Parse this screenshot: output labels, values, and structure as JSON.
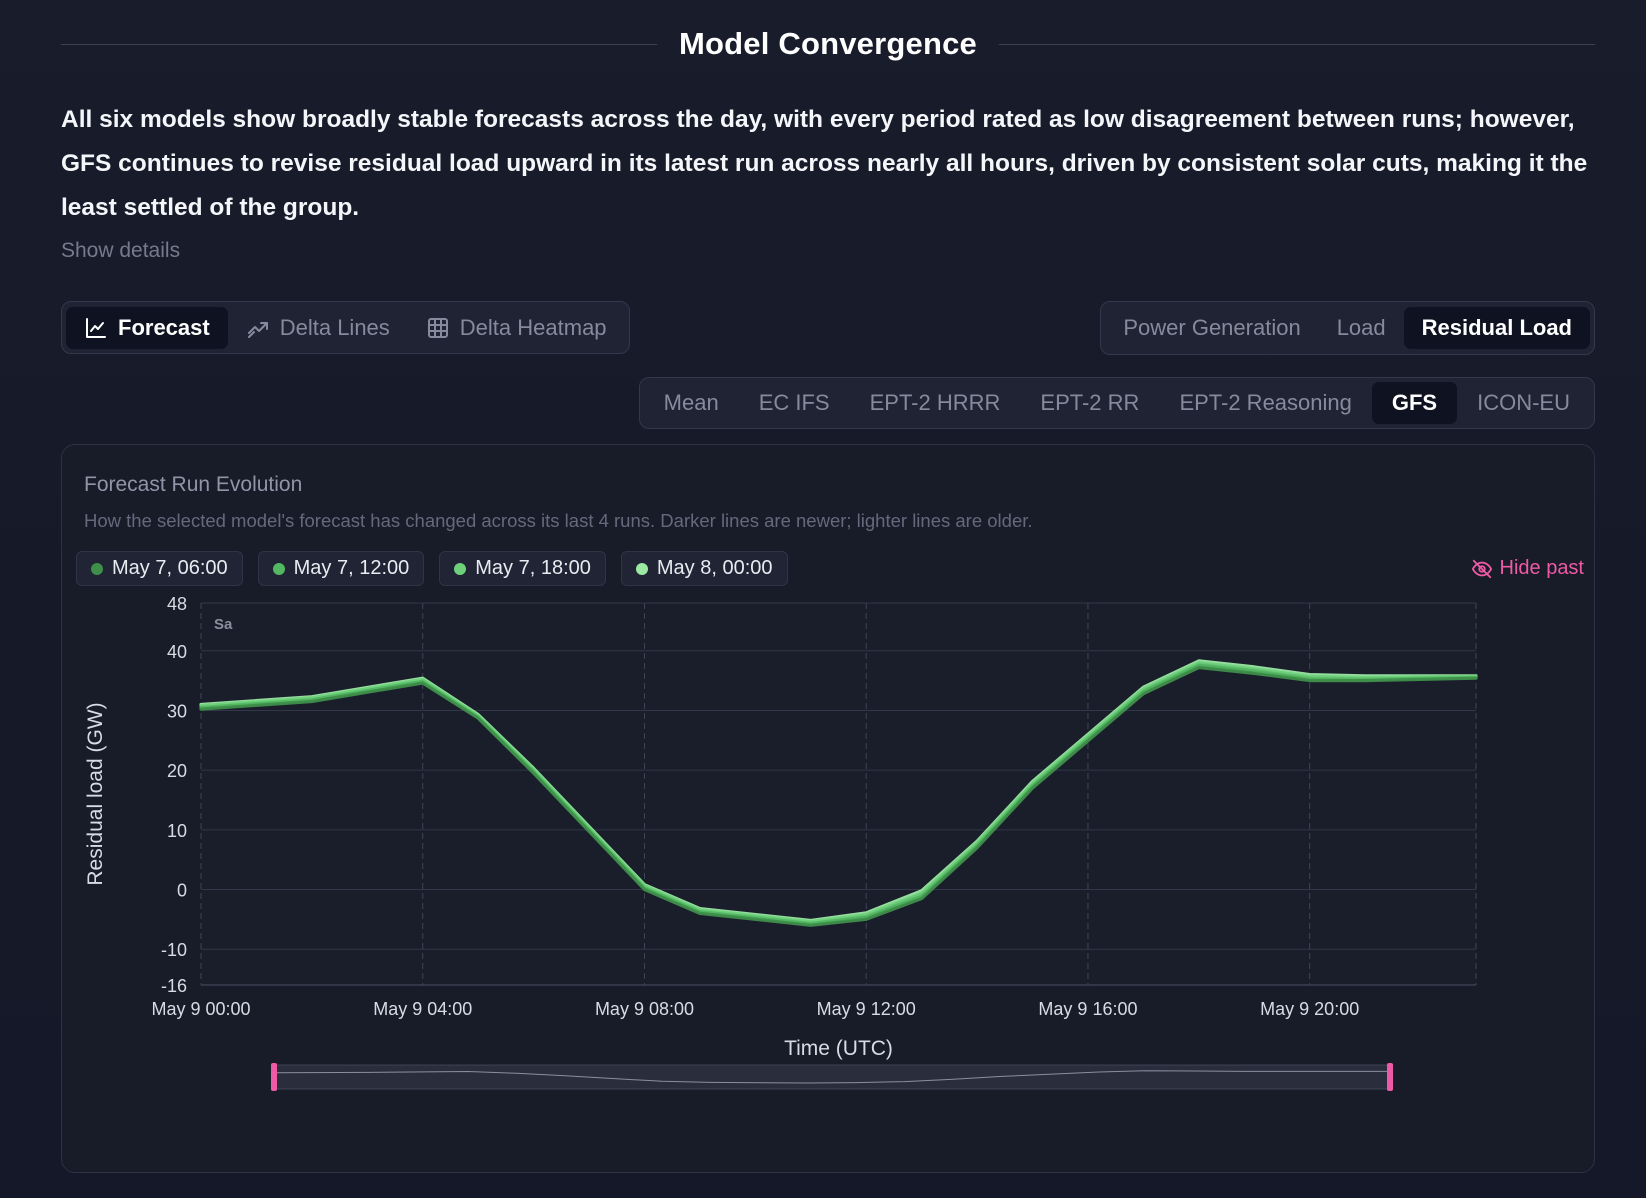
{
  "header": {
    "title": "Model Convergence",
    "summary": "All six models show broadly stable forecasts across the day, with every period rated as low disagreement between runs; however, GFS continues to revise residual load upward in its latest run across nearly all hours, driven by consistent solar cuts, making it the least settled of the group.",
    "show_details": "Show details"
  },
  "view_tabs": [
    {
      "label": "Forecast",
      "icon": "line-chart-icon",
      "active": true
    },
    {
      "label": "Delta Lines",
      "icon": "trend-icon",
      "active": false
    },
    {
      "label": "Delta Heatmap",
      "icon": "grid-icon",
      "active": false
    }
  ],
  "metric_tabs": [
    {
      "label": "Power Generation",
      "active": false
    },
    {
      "label": "Load",
      "active": false
    },
    {
      "label": "Residual Load",
      "active": true
    }
  ],
  "model_tabs": [
    {
      "label": "Mean",
      "active": false
    },
    {
      "label": "EC IFS",
      "active": false
    },
    {
      "label": "EPT-2 HRRR",
      "active": false
    },
    {
      "label": "EPT-2 RR",
      "active": false
    },
    {
      "label": "EPT-2 Reasoning",
      "active": false
    },
    {
      "label": "GFS",
      "active": true
    },
    {
      "label": "ICON-EU",
      "active": false
    }
  ],
  "card": {
    "title": "Forecast Run Evolution",
    "subtitle": "How the selected model's forecast has changed across its last 4 runs. Darker lines are newer; lighter lines are older.",
    "hide_past_label": "Hide past",
    "hide_past_icon": "eye-off-icon"
  },
  "colors": {
    "accent_pink": "#ee5aa5",
    "run_newest": "#3e8f4a",
    "run_1": "#53b862",
    "run_2": "#6fd07c",
    "run_oldest": "#9be8a3"
  },
  "chart_data": {
    "type": "line",
    "title": "",
    "xlabel": "Time (UTC)",
    "ylabel": "Residual load (GW)",
    "day_marker": "Sa",
    "xlim": [
      0,
      23
    ],
    "ylim": [
      -16,
      48
    ],
    "yticks": [
      48,
      40,
      30,
      20,
      10,
      0,
      -10,
      -16
    ],
    "xticks": [
      {
        "x": 0,
        "label": "May 9 00:00"
      },
      {
        "x": 4,
        "label": "May 9 04:00"
      },
      {
        "x": 8,
        "label": "May 9 08:00"
      },
      {
        "x": 12,
        "label": "May 9 12:00"
      },
      {
        "x": 16,
        "label": "May 9 16:00"
      },
      {
        "x": 20,
        "label": "May 9 20:00"
      }
    ],
    "grid": true,
    "x": [
      0,
      2,
      4,
      5,
      6,
      8,
      9,
      11,
      12,
      13,
      14,
      15,
      17,
      18,
      19,
      20,
      21,
      22,
      23
    ],
    "series": [
      {
        "name": "May 7, 06:00",
        "color": "#3e8f4a",
        "values": [
          30.2,
          31.5,
          34.6,
          28.7,
          19.5,
          0.0,
          -4.0,
          -6.0,
          -5.0,
          -1.5,
          7.0,
          17.0,
          32.8,
          37.2,
          36.2,
          35.0,
          35.0,
          35.2,
          35.4
        ]
      },
      {
        "name": "May 7, 12:00",
        "color": "#53b862",
        "values": [
          30.5,
          31.8,
          34.9,
          28.9,
          19.8,
          0.3,
          -3.7,
          -5.7,
          -4.6,
          -1.1,
          7.4,
          17.4,
          33.2,
          37.6,
          36.6,
          35.3,
          35.2,
          35.4,
          35.5
        ]
      },
      {
        "name": "May 7, 18:00",
        "color": "#6fd07c",
        "values": [
          30.8,
          32.1,
          35.2,
          29.1,
          20.1,
          0.6,
          -3.4,
          -5.4,
          -4.2,
          -0.6,
          7.8,
          17.8,
          33.6,
          38.0,
          37.0,
          35.7,
          35.5,
          35.6,
          35.7
        ]
      },
      {
        "name": "May 8, 00:00",
        "color": "#9be8a3",
        "values": [
          31.0,
          32.3,
          35.4,
          29.3,
          20.3,
          0.8,
          -3.2,
          -5.2,
          -3.9,
          -0.2,
          8.1,
          18.1,
          33.9,
          38.3,
          37.3,
          36.0,
          35.8,
          35.8,
          35.8
        ]
      }
    ]
  }
}
